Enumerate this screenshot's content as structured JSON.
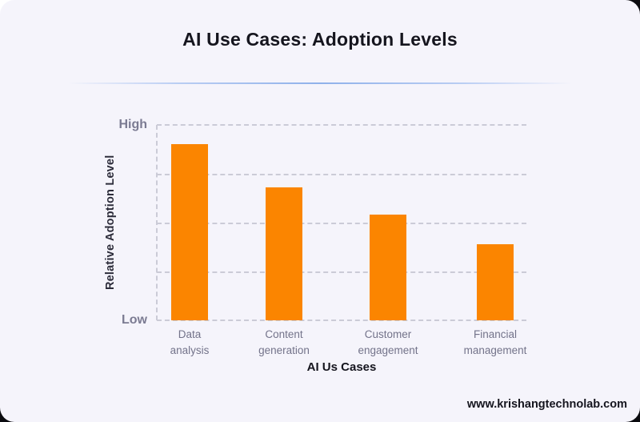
{
  "header": {
    "title": "AI Use Cases: Adoption Levels"
  },
  "chart_data": {
    "type": "bar",
    "title": "AI Use Cases: Adoption Levels",
    "categories": [
      "Data analysis",
      "Content generation",
      "Customer engagement",
      "Financial management"
    ],
    "values": [
      0.9,
      0.68,
      0.54,
      0.39
    ],
    "xlabel": "AI Us Cases",
    "ylabel": "Relative Adoption Level",
    "yticks": [
      "High",
      "Low"
    ],
    "ylim": [
      0,
      1
    ],
    "grid": "horizontal dashed, 5 lines, dashed y-axis",
    "legend": "none",
    "bar_color": "#fb8500"
  },
  "colors": {
    "card_background": "#f5f4fb",
    "outer_background": "#0b0b0f",
    "bar": "#fb8500",
    "gridline": "#cbcbd7",
    "tick_text": "#73738a",
    "title_text": "#15151e",
    "divider_blue": "#8fb1ea"
  },
  "footer": {
    "website": "www.krishangtechnolab.com"
  }
}
